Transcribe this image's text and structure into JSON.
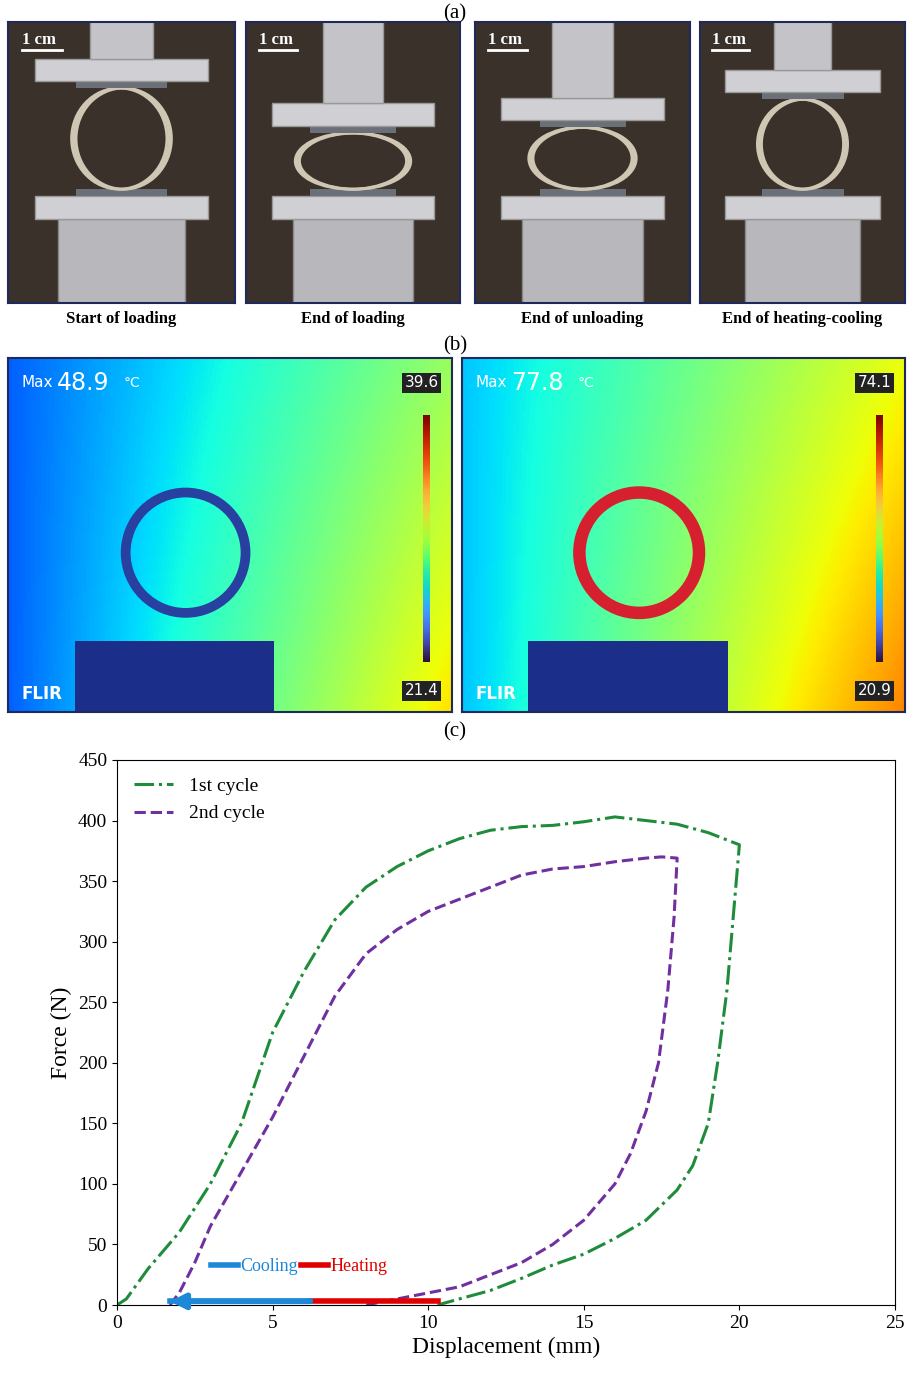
{
  "panel_labels": [
    "(a)",
    "(b)",
    "(c)"
  ],
  "photos": {
    "scale_bar": "1 cm",
    "captions": [
      "Start of loading",
      "End of loading",
      "End of unloading",
      "End of heating-cooling"
    ]
  },
  "thermal": [
    {
      "max_label": "Max",
      "max": 48.9,
      "unit": "°C",
      "scale_max": 39.6,
      "scale_min": 21.4,
      "logo": "FLIR"
    },
    {
      "max_label": "Max",
      "max": 77.8,
      "unit": "°C",
      "scale_max": 74.1,
      "scale_min": 20.9,
      "logo": "FLIR"
    }
  ],
  "chart_data": {
    "type": "line",
    "xlabel": "Displacement (mm)",
    "ylabel": "Force (N)",
    "xlim": [
      0,
      25
    ],
    "xticks": [
      0,
      5,
      10,
      15,
      20,
      25
    ],
    "ylim": [
      0,
      450
    ],
    "yticks": [
      0,
      50,
      100,
      150,
      200,
      250,
      300,
      350,
      400,
      450
    ],
    "legend": "upper left",
    "series": [
      {
        "name": "1st cycle",
        "color": "#1e8c3a",
        "line_style": "dashdot",
        "x": [
          0,
          0.3,
          1,
          2,
          3,
          4,
          5,
          6,
          7,
          8,
          9,
          10,
          11,
          12,
          13,
          14,
          15,
          16,
          17,
          18,
          19,
          20,
          19.8,
          19.6,
          19.3,
          19,
          18.5,
          18,
          17,
          16,
          15,
          14,
          13,
          12,
          11,
          10.3
        ],
        "values": [
          0,
          5,
          30,
          60,
          100,
          150,
          225,
          275,
          318,
          345,
          362,
          375,
          385,
          392,
          395,
          396,
          399,
          403,
          400,
          397,
          390,
          380,
          320,
          260,
          200,
          150,
          115,
          95,
          70,
          55,
          42,
          33,
          22,
          12,
          5,
          0
        ]
      },
      {
        "name": "2nd cycle",
        "color": "#7030a0",
        "line_style": "dashed",
        "x": [
          1.7,
          2,
          2.5,
          3,
          4,
          5,
          6,
          7,
          8,
          9,
          10,
          11,
          12,
          13,
          14,
          15,
          16,
          17,
          17.5,
          18,
          17.9,
          17.7,
          17.4,
          17,
          16.5,
          16,
          15,
          14,
          13,
          12,
          11,
          10,
          9,
          8
        ],
        "values": [
          0,
          10,
          35,
          65,
          110,
          155,
          205,
          255,
          290,
          310,
          325,
          335,
          345,
          355,
          360,
          362,
          366,
          369,
          370,
          369,
          320,
          260,
          200,
          160,
          125,
          100,
          70,
          50,
          35,
          25,
          15,
          10,
          5,
          0
        ]
      }
    ],
    "recovery": [
      {
        "name": "Cooling",
        "color": "#1e88d8",
        "x": [
          6.2,
          1.7
        ],
        "y": 3
      },
      {
        "name": "Heating",
        "color": "#e00000",
        "x": [
          10.3,
          6.2
        ],
        "y": 3
      }
    ]
  }
}
